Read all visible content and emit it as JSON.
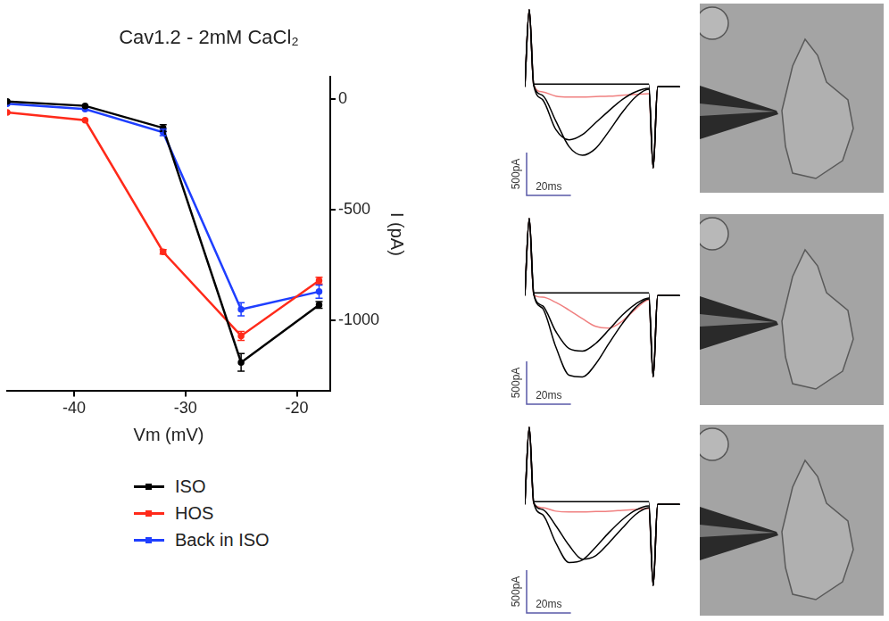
{
  "chart_data": [
    {
      "type": "line",
      "title": "Cav1.2 - 2mM CaCl₂",
      "x_label": "Vm (mV)",
      "y_label": "I (pA)",
      "x": [
        -46,
        -39,
        -32,
        -25,
        -18
      ],
      "xlim": [
        -46,
        -17
      ],
      "xticks": [
        -40,
        -30,
        -20
      ],
      "ylim": [
        -1320,
        100
      ],
      "yticks": [
        -1000,
        -500,
        0
      ],
      "grid": false,
      "legend": "bottom",
      "marker": "circle",
      "series": [
        {
          "name": "ISO",
          "color": "#000000",
          "values": [
            -10,
            -30,
            -130,
            -1190,
            -930
          ],
          "errors": [
            null,
            null,
            15,
            40,
            15
          ]
        },
        {
          "name": "HOS",
          "color": "#ff2a1a",
          "values": [
            -60,
            -95,
            -690,
            -1070,
            -820
          ],
          "errors": [
            null,
            null,
            10,
            20,
            15
          ]
        },
        {
          "name": "Back in ISO",
          "color": "#1f3fff",
          "values": [
            -20,
            -45,
            -150,
            -950,
            -870
          ],
          "errors": [
            null,
            null,
            15,
            30,
            30
          ]
        }
      ]
    },
    {
      "type": "line",
      "tick_labels": false,
      "xlim": [
        0,
        75
      ],
      "ylim": [
        -1300,
        950
      ],
      "x": [
        0,
        2,
        4,
        8,
        14,
        20,
        26,
        32,
        38,
        44,
        50,
        56,
        58,
        60,
        64,
        70
      ],
      "scale_bars": {
        "x": {
          "value": 20,
          "label": "20ms"
        },
        "y": {
          "value": 500,
          "label": "500pA"
        }
      },
      "series": [
        {
          "color": "#000000",
          "values": [
            0,
            900,
            30,
            30,
            30,
            30,
            30,
            30,
            30,
            30,
            30,
            30,
            -950,
            0,
            0,
            0
          ]
        },
        {
          "color": "#000000",
          "values": [
            0,
            900,
            20,
            -100,
            -400,
            -700,
            -800,
            -720,
            -520,
            -300,
            -120,
            -30,
            -950,
            0,
            0,
            0
          ]
        },
        {
          "color": "#000000",
          "values": [
            0,
            900,
            20,
            -150,
            -500,
            -620,
            -560,
            -420,
            -280,
            -150,
            -60,
            -20,
            -950,
            0,
            0,
            0
          ]
        },
        {
          "color": "#f08080",
          "values": [
            0,
            900,
            20,
            -60,
            -110,
            -120,
            -120,
            -115,
            -110,
            -100,
            -90,
            -80,
            -950,
            0,
            0,
            0
          ]
        }
      ]
    },
    {
      "type": "line",
      "tick_labels": false,
      "xlim": [
        0,
        75
      ],
      "ylim": [
        -1300,
        950
      ],
      "x": [
        0,
        2,
        4,
        8,
        14,
        20,
        26,
        32,
        38,
        44,
        50,
        56,
        58,
        60,
        64,
        70
      ],
      "scale_bars": {
        "x": {
          "value": 20,
          "label": "20ms"
        },
        "y": {
          "value": 500,
          "label": "500pA"
        }
      },
      "series": [
        {
          "color": "#000000",
          "values": [
            0,
            900,
            30,
            30,
            30,
            30,
            30,
            30,
            30,
            30,
            30,
            30,
            -950,
            0,
            0,
            0
          ]
        },
        {
          "color": "#000000",
          "values": [
            0,
            900,
            20,
            -150,
            -600,
            -930,
            -950,
            -800,
            -560,
            -330,
            -140,
            -40,
            -950,
            0,
            0,
            0
          ]
        },
        {
          "color": "#000000",
          "values": [
            0,
            900,
            20,
            -120,
            -420,
            -620,
            -650,
            -560,
            -400,
            -230,
            -100,
            -30,
            -950,
            0,
            0,
            0
          ]
        },
        {
          "color": "#f08080",
          "values": [
            0,
            900,
            10,
            -20,
            -80,
            -170,
            -270,
            -360,
            -380,
            -300,
            -160,
            -50,
            -950,
            0,
            0,
            0
          ]
        }
      ]
    },
    {
      "type": "line",
      "tick_labels": false,
      "xlim": [
        0,
        75
      ],
      "ylim": [
        -1300,
        950
      ],
      "x": [
        0,
        2,
        4,
        8,
        14,
        20,
        26,
        32,
        38,
        44,
        50,
        56,
        58,
        60,
        64,
        70
      ],
      "scale_bars": {
        "x": {
          "value": 20,
          "label": "20ms"
        },
        "y": {
          "value": 500,
          "label": "500pA"
        }
      },
      "series": [
        {
          "color": "#000000",
          "values": [
            0,
            900,
            30,
            30,
            30,
            30,
            30,
            30,
            30,
            30,
            30,
            30,
            -950,
            0,
            0,
            0
          ]
        },
        {
          "color": "#000000",
          "values": [
            0,
            900,
            20,
            -120,
            -450,
            -680,
            -650,
            -500,
            -330,
            -180,
            -70,
            -20,
            -950,
            0,
            0,
            0
          ]
        },
        {
          "color": "#000000",
          "values": [
            0,
            900,
            20,
            -60,
            -250,
            -480,
            -640,
            -600,
            -450,
            -280,
            -120,
            -40,
            -950,
            0,
            0,
            0
          ]
        },
        {
          "color": "#f08080",
          "values": [
            0,
            900,
            10,
            -40,
            -80,
            -90,
            -90,
            -85,
            -80,
            -70,
            -60,
            -50,
            -950,
            0,
            0,
            0
          ]
        }
      ]
    }
  ]
}
